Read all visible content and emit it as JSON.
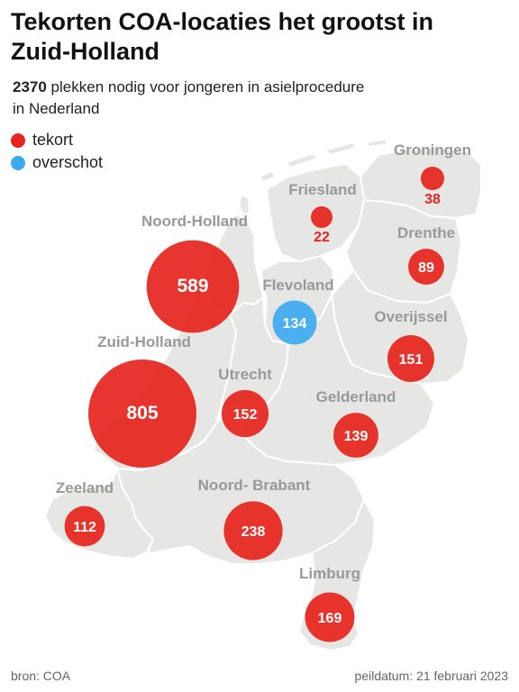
{
  "title": "Tekorten COA-locaties het grootst in Zuid-Holland",
  "subtitle": {
    "number": "2370",
    "text": " plekken nodig voor jongeren in asielprocedure in Nederland"
  },
  "legend": [
    {
      "label": "tekort",
      "color": "#e5261f"
    },
    {
      "label": "overschot",
      "color": "#3da9f0"
    }
  ],
  "colors": {
    "tekort": "#e5261f",
    "overschot": "#3da9f0",
    "land": "#e6e6e4",
    "region_label": "#999999"
  },
  "provinces": [
    {
      "id": "groningen",
      "name": "Groningen",
      "value": 38,
      "type": "tekort"
    },
    {
      "id": "friesland",
      "name": "Friesland",
      "value": 22,
      "type": "tekort"
    },
    {
      "id": "drenthe",
      "name": "Drenthe",
      "value": 89,
      "type": "tekort"
    },
    {
      "id": "noord-holland",
      "name": "Noord-Holland",
      "value": 589,
      "type": "tekort"
    },
    {
      "id": "flevoland",
      "name": "Flevoland",
      "value": 134,
      "type": "overschot"
    },
    {
      "id": "overijssel",
      "name": "Overijssel",
      "value": 151,
      "type": "tekort"
    },
    {
      "id": "zuid-holland",
      "name": "Zuid-Holland",
      "value": 805,
      "type": "tekort"
    },
    {
      "id": "utrecht",
      "name": "Utrecht",
      "value": 152,
      "type": "tekort"
    },
    {
      "id": "gelderland",
      "name": "Gelderland",
      "value": 139,
      "type": "tekort"
    },
    {
      "id": "zeeland",
      "name": "Zeeland",
      "value": 112,
      "type": "tekort"
    },
    {
      "id": "noord-brabant",
      "name": "Noord- Brabant",
      "value": 238,
      "type": "tekort"
    },
    {
      "id": "limburg",
      "name": "Limburg",
      "value": 169,
      "type": "tekort"
    }
  ],
  "footer": {
    "source": "bron: COA",
    "date": "peildatum: 21 februari 2023"
  }
}
